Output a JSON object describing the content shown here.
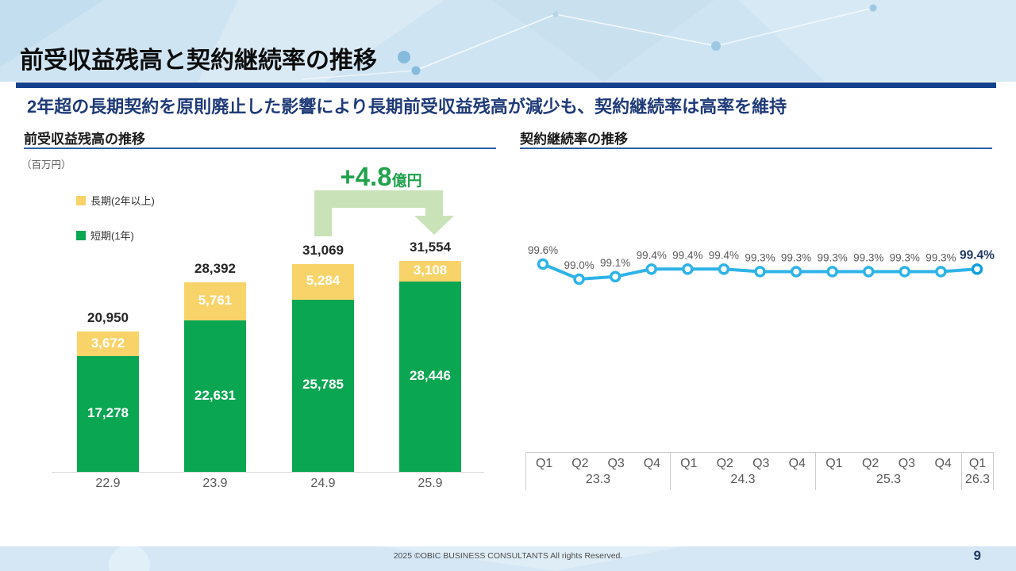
{
  "slide": {
    "title": "前受収益残高と契約継続率の推移",
    "subtitle": "2年超の長期契約を原則廃止した影響により長期前受収益残高が減少も、契約継続率は高率を維持",
    "footer_text": "2025 ©OBIC BUSINESS CONSULTANTS All rights Reserved.",
    "page_number": "9"
  },
  "colors": {
    "banner_bg": "#cfe4f2",
    "title_rule_navy": "#14418c",
    "section_rule_blue": "#2e5ea6",
    "short_term_green": "#0ba652",
    "long_term_yellow": "#f8d369",
    "annotation_green": "#21a24d",
    "arrow_light_green": "#c9e2b8",
    "line_blue": "#2eb3e8",
    "last_point_blue": "#119fdd",
    "emphasis_navy": "#1f3864",
    "gray_text": "#595959"
  },
  "chart_data": [
    {
      "type": "bar",
      "stacked": true,
      "title": "前受収益残高の推移",
      "unit_label": "（百万円）",
      "categories": [
        "22.9",
        "23.9",
        "24.9",
        "25.9"
      ],
      "series": [
        {
          "name": "短期(1年)",
          "color": "#0ba652",
          "values": [
            17278,
            22631,
            25785,
            28446
          ]
        },
        {
          "name": "長期(2年以上)",
          "color": "#f8d369",
          "values": [
            3672,
            5761,
            5284,
            3108
          ]
        }
      ],
      "totals": [
        20950,
        28392,
        31069,
        31554
      ],
      "legend_order": [
        1,
        0
      ],
      "ylim": [
        0,
        33000
      ],
      "annotation": {
        "value": "+4.8",
        "unit": "億円",
        "shape": "bent-down-arrow"
      }
    },
    {
      "type": "line",
      "title": "契約継続率の推移",
      "values": [
        99.6,
        99.0,
        99.1,
        99.4,
        99.4,
        99.4,
        99.3,
        99.3,
        99.3,
        99.3,
        99.3,
        99.3,
        99.4
      ],
      "point_labels": [
        "99.6%",
        "99.0%",
        "99.1%",
        "99.4%",
        "99.4%",
        "99.4%",
        "99.3%",
        "99.3%",
        "99.3%",
        "99.3%",
        "99.3%",
        "99.3%",
        "99.4%"
      ],
      "last_label_emphasized": true,
      "ylim": [
        98.8,
        99.8
      ],
      "x_groups": [
        {
          "year": "23.3",
          "quarters": [
            "Q1",
            "Q2",
            "Q3",
            "Q4"
          ]
        },
        {
          "year": "24.3",
          "quarters": [
            "Q1",
            "Q2",
            "Q3",
            "Q4"
          ]
        },
        {
          "year": "25.3",
          "quarters": [
            "Q1",
            "Q2",
            "Q3",
            "Q4"
          ]
        },
        {
          "year": "26.3",
          "quarters": [
            "Q1"
          ]
        }
      ]
    }
  ]
}
